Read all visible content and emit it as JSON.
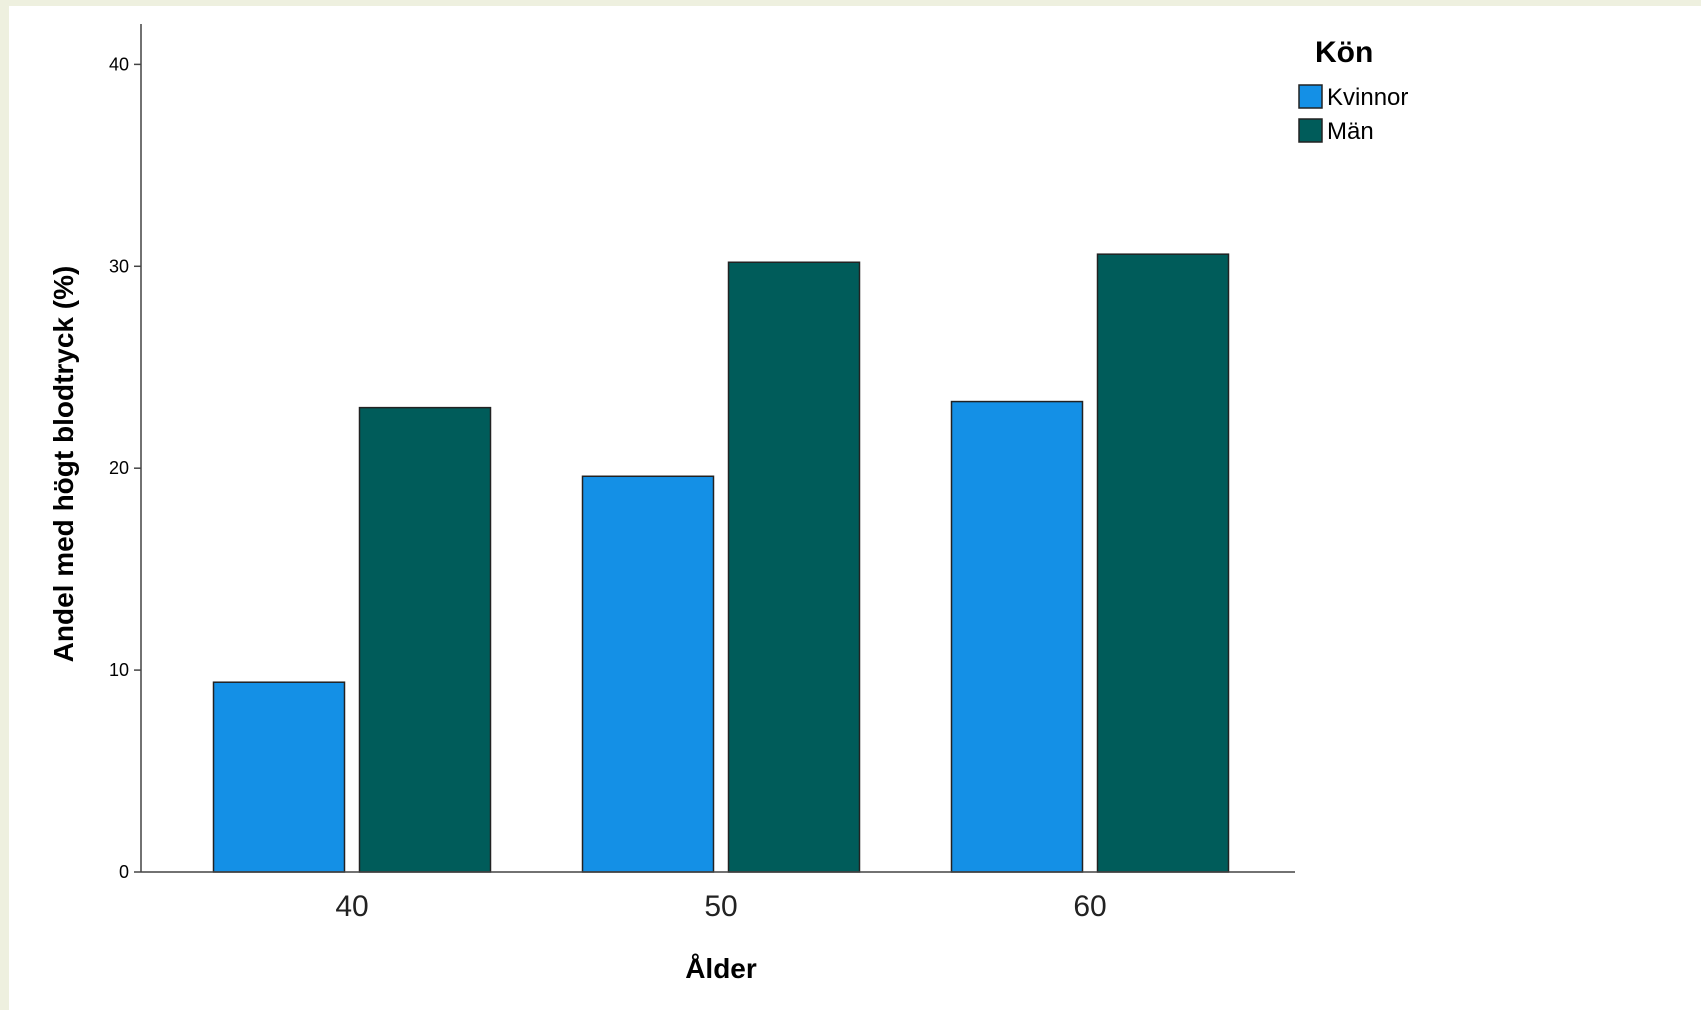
{
  "chart_data": {
    "type": "bar",
    "categories": [
      "40",
      "50",
      "60"
    ],
    "series": [
      {
        "name": "Kvinnor",
        "values": [
          9.4,
          19.6,
          23.3
        ],
        "color": "#1490e6"
      },
      {
        "name": "Män",
        "values": [
          23.0,
          30.2,
          30.6
        ],
        "color": "#005c5a"
      }
    ],
    "xlabel": "Ålder",
    "ylabel": "Andel med högt blodtryck (%)",
    "ylim": [
      0,
      42
    ],
    "yticks": [
      "0",
      "10",
      "20",
      "30",
      "40"
    ],
    "legend": {
      "title": "Kön",
      "position": "top-right"
    },
    "grid": false
  }
}
